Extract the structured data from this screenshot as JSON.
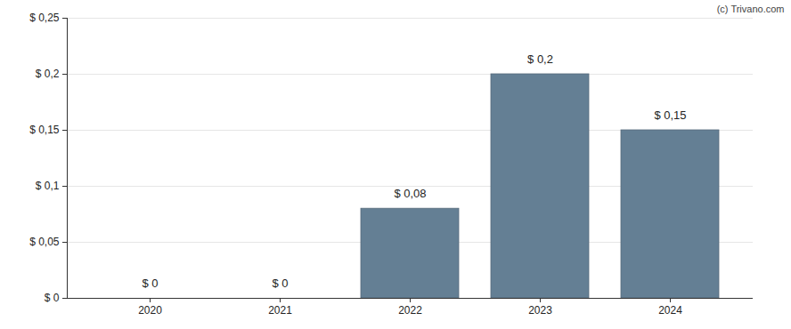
{
  "chart_data": {
    "type": "bar",
    "categories": [
      "2020",
      "2021",
      "2022",
      "2023",
      "2024"
    ],
    "values": [
      0,
      0,
      0.08,
      0.2,
      0.15
    ],
    "value_labels": [
      "$ 0",
      "$ 0",
      "$ 0,08",
      "$ 0,2",
      "$ 0,15"
    ],
    "data_labels": true,
    "color": "#647f94",
    "ylim": [
      0,
      0.25
    ],
    "yticks": [
      {
        "value": 0,
        "label": "$ 0"
      },
      {
        "value": 0.05,
        "label": "$ 0,05"
      },
      {
        "value": 0.1,
        "label": "$ 0,1"
      },
      {
        "value": 0.15,
        "label": "$ 0,15"
      },
      {
        "value": 0.2,
        "label": "$ 0,2"
      },
      {
        "value": 0.25,
        "label": "$ 0,25"
      }
    ],
    "grid": true,
    "annotations": [
      "(c) Trivano.com"
    ]
  }
}
